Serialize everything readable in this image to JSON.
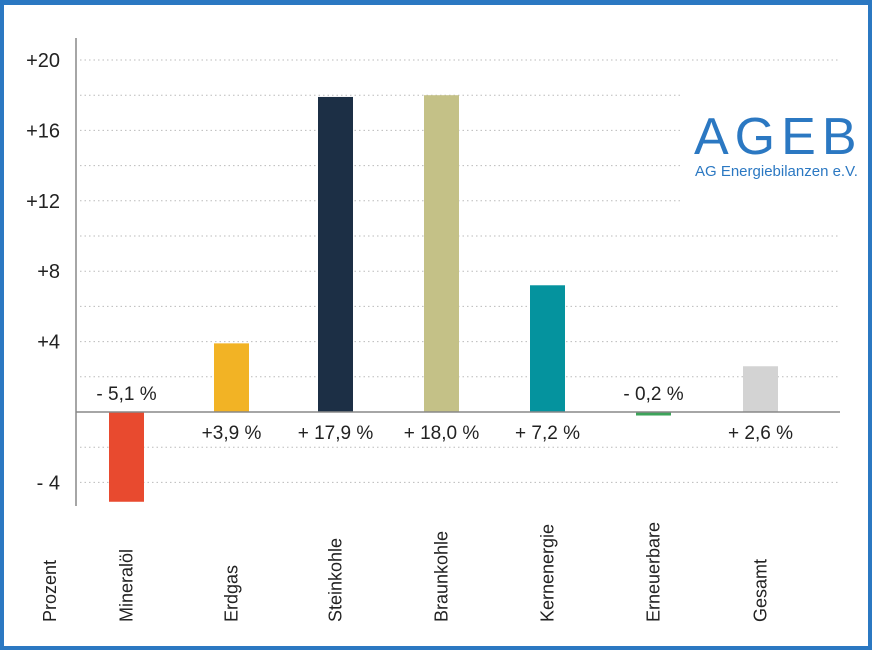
{
  "chart_data": {
    "type": "bar",
    "ylabel": "Prozent",
    "categories": [
      "Mineralöl",
      "Erdgas",
      "Steinkohle",
      "Braunkohle",
      "Kernenergie",
      "Erneuerbare",
      "Gesamt"
    ],
    "values": [
      -5.1,
      3.9,
      17.9,
      18.0,
      7.2,
      -0.2,
      2.6
    ],
    "data_labels": [
      "- 5,1 %",
      "+3,9 %",
      "+ 17,9 %",
      "+ 18,0 %",
      "+ 7,2 %",
      "- 0,2 %",
      "+ 2,6 %"
    ],
    "colors": [
      "#e84a2f",
      "#f2b325",
      "#1c2f45",
      "#c4c187",
      "#05939e",
      "#3da35a",
      "#d3d3d3"
    ],
    "yticks": [
      20,
      16,
      12,
      8,
      4,
      -4
    ],
    "ytick_labels": [
      "+20",
      "+16",
      "+12",
      "+8",
      "+4",
      "- 4"
    ],
    "ylim": [
      -5.3,
      21
    ],
    "grid": true,
    "grid_step": 2
  },
  "logo": {
    "name": "AGEB",
    "subtitle": "AG Energiebilanzen e.V."
  }
}
